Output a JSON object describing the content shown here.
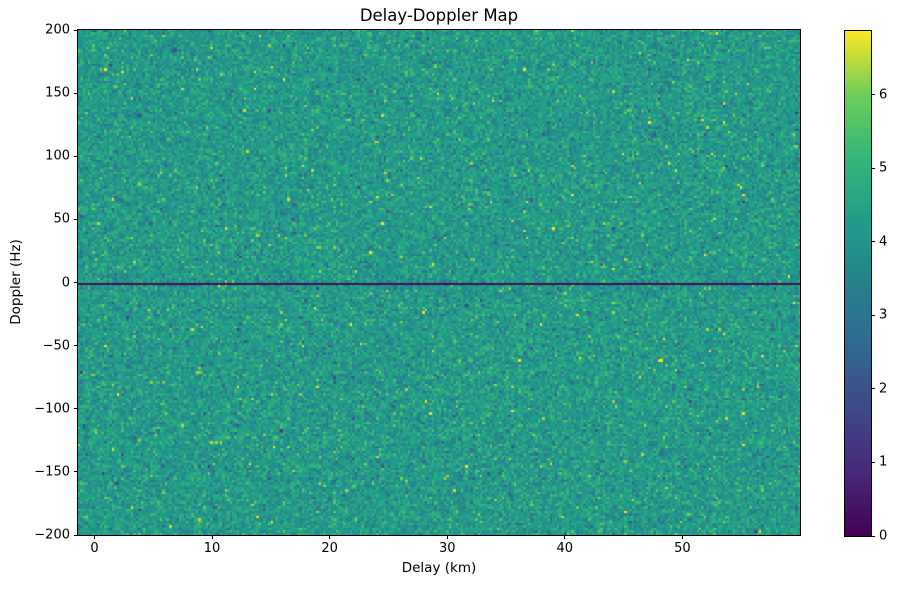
{
  "chart_data": {
    "type": "heatmap",
    "title": "Delay-Doppler Map",
    "xlabel": "Delay (km)",
    "ylabel": "Doppler (Hz)",
    "xlim": [
      -1.4,
      60
    ],
    "ylim": [
      -200,
      200
    ],
    "x_tick_values": [
      0,
      10,
      20,
      30,
      40,
      50
    ],
    "x_tick_labels": [
      "0",
      "10",
      "20",
      "30",
      "40",
      "50"
    ],
    "y_tick_values": [
      200,
      150,
      100,
      50,
      0,
      -50,
      -100,
      -150,
      -200
    ],
    "y_tick_labels": [
      "200",
      "150",
      "100",
      "50",
      "0",
      "−50",
      "−100",
      "−150",
      "−200"
    ],
    "grid": false,
    "legend": "none",
    "colormap": "viridis",
    "colormap_stops": [
      {
        "pos": 0.0,
        "color": "#440154"
      },
      {
        "pos": 0.125,
        "color": "#482878"
      },
      {
        "pos": 0.25,
        "color": "#3e4a89"
      },
      {
        "pos": 0.375,
        "color": "#31688e"
      },
      {
        "pos": 0.5,
        "color": "#26828e"
      },
      {
        "pos": 0.625,
        "color": "#1f9e89"
      },
      {
        "pos": 0.75,
        "color": "#35b779"
      },
      {
        "pos": 0.875,
        "color": "#6dcd59"
      },
      {
        "pos": 1.0,
        "color": "#fde725"
      }
    ],
    "colorbar": {
      "vmin": 0,
      "vmax": 6.87,
      "tick_values": [
        0,
        1,
        2,
        3,
        4,
        5,
        6
      ],
      "tick_labels": [
        "0",
        "1",
        "2",
        "3",
        "4",
        "5",
        "6"
      ]
    },
    "heatmap": {
      "grid_cols": 300,
      "grid_rows": 210,
      "background_noise": {
        "distribution": "gaussian-with-speckle",
        "mean": 4.18,
        "std": 0.52,
        "bright_speckle_prob": 0.025,
        "bright_speckle_boost": [
          0.9,
          2.0
        ],
        "dark_speckle_prob": 0.02,
        "dark_speckle_drop": [
          0.8,
          1.8
        ],
        "value_clamp": [
          0.25,
          6.85
        ],
        "seed": 42
      },
      "features": [
        {
          "name": "zero-doppler-line",
          "shape": "horizontal-line",
          "doppler_hz": 0,
          "value_range": [
            0.1,
            0.3
          ],
          "extent": "full delay range"
        }
      ]
    }
  }
}
